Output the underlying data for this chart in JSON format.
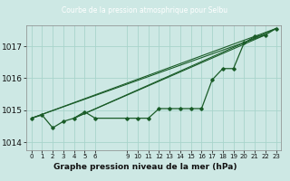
{
  "title": "Courbe de la pression atmosphrique pour Selbu",
  "xlabel": "Graphe pression niveau de la mer (hPa)",
  "bg_color": "#cde8e4",
  "plot_bg_color": "#cde8e4",
  "header_color": "#2d6b3c",
  "line_color": "#1a5c28",
  "x_ticks": [
    0,
    1,
    2,
    3,
    4,
    5,
    6,
    9,
    10,
    11,
    12,
    13,
    14,
    15,
    16,
    17,
    18,
    19,
    20,
    21,
    22,
    23
  ],
  "ylim": [
    1013.75,
    1017.65
  ],
  "xlim": [
    -0.5,
    23.5
  ],
  "yticks": [
    1014,
    1015,
    1016,
    1017
  ],
  "series": [
    [
      0,
      1014.75
    ],
    [
      1,
      1014.85
    ],
    [
      2,
      1014.45
    ],
    [
      3,
      1014.65
    ],
    [
      4,
      1014.75
    ],
    [
      5,
      1014.95
    ],
    [
      6,
      1014.75
    ],
    [
      9,
      1014.75
    ],
    [
      10,
      1014.75
    ],
    [
      11,
      1014.75
    ],
    [
      12,
      1015.05
    ],
    [
      13,
      1015.05
    ],
    [
      14,
      1015.05
    ],
    [
      15,
      1015.05
    ],
    [
      16,
      1015.05
    ],
    [
      17,
      1015.95
    ],
    [
      18,
      1016.3
    ],
    [
      19,
      1016.3
    ],
    [
      20,
      1017.1
    ],
    [
      21,
      1017.3
    ],
    [
      22,
      1017.35
    ],
    [
      23,
      1017.55
    ]
  ],
  "fan_lines": [
    [
      [
        0,
        1014.75
      ],
      [
        22,
        1017.35
      ]
    ],
    [
      [
        0,
        1014.75
      ],
      [
        23,
        1017.55
      ]
    ],
    [
      [
        4,
        1014.75
      ],
      [
        22,
        1017.35
      ]
    ],
    [
      [
        4,
        1014.75
      ],
      [
        23,
        1017.55
      ]
    ]
  ]
}
